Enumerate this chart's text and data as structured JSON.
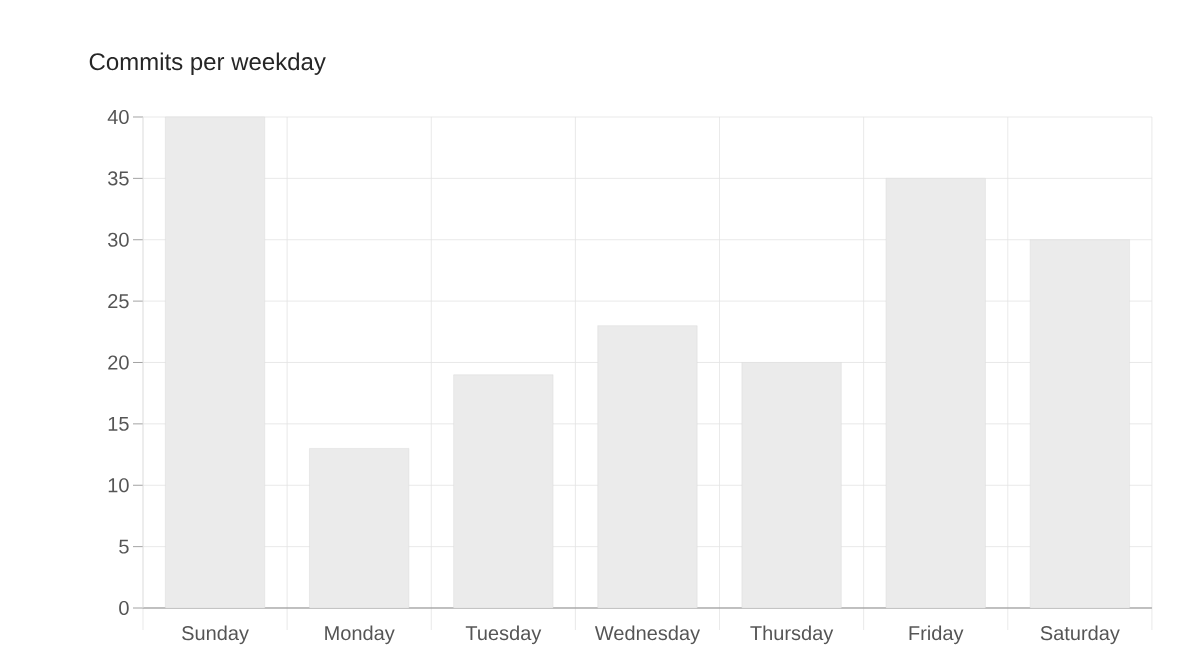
{
  "chart_data": {
    "type": "bar",
    "title": "Commits per weekday",
    "categories": [
      "Sunday",
      "Monday",
      "Tuesday",
      "Wednesday",
      "Thursday",
      "Friday",
      "Saturday"
    ],
    "values": [
      40,
      13,
      19,
      23,
      20,
      35,
      30
    ],
    "color": "#ebebeb",
    "ylim": [
      0,
      40
    ],
    "yticks": [
      0,
      5,
      10,
      15,
      20,
      25,
      30,
      35,
      40
    ],
    "grid": true
  }
}
